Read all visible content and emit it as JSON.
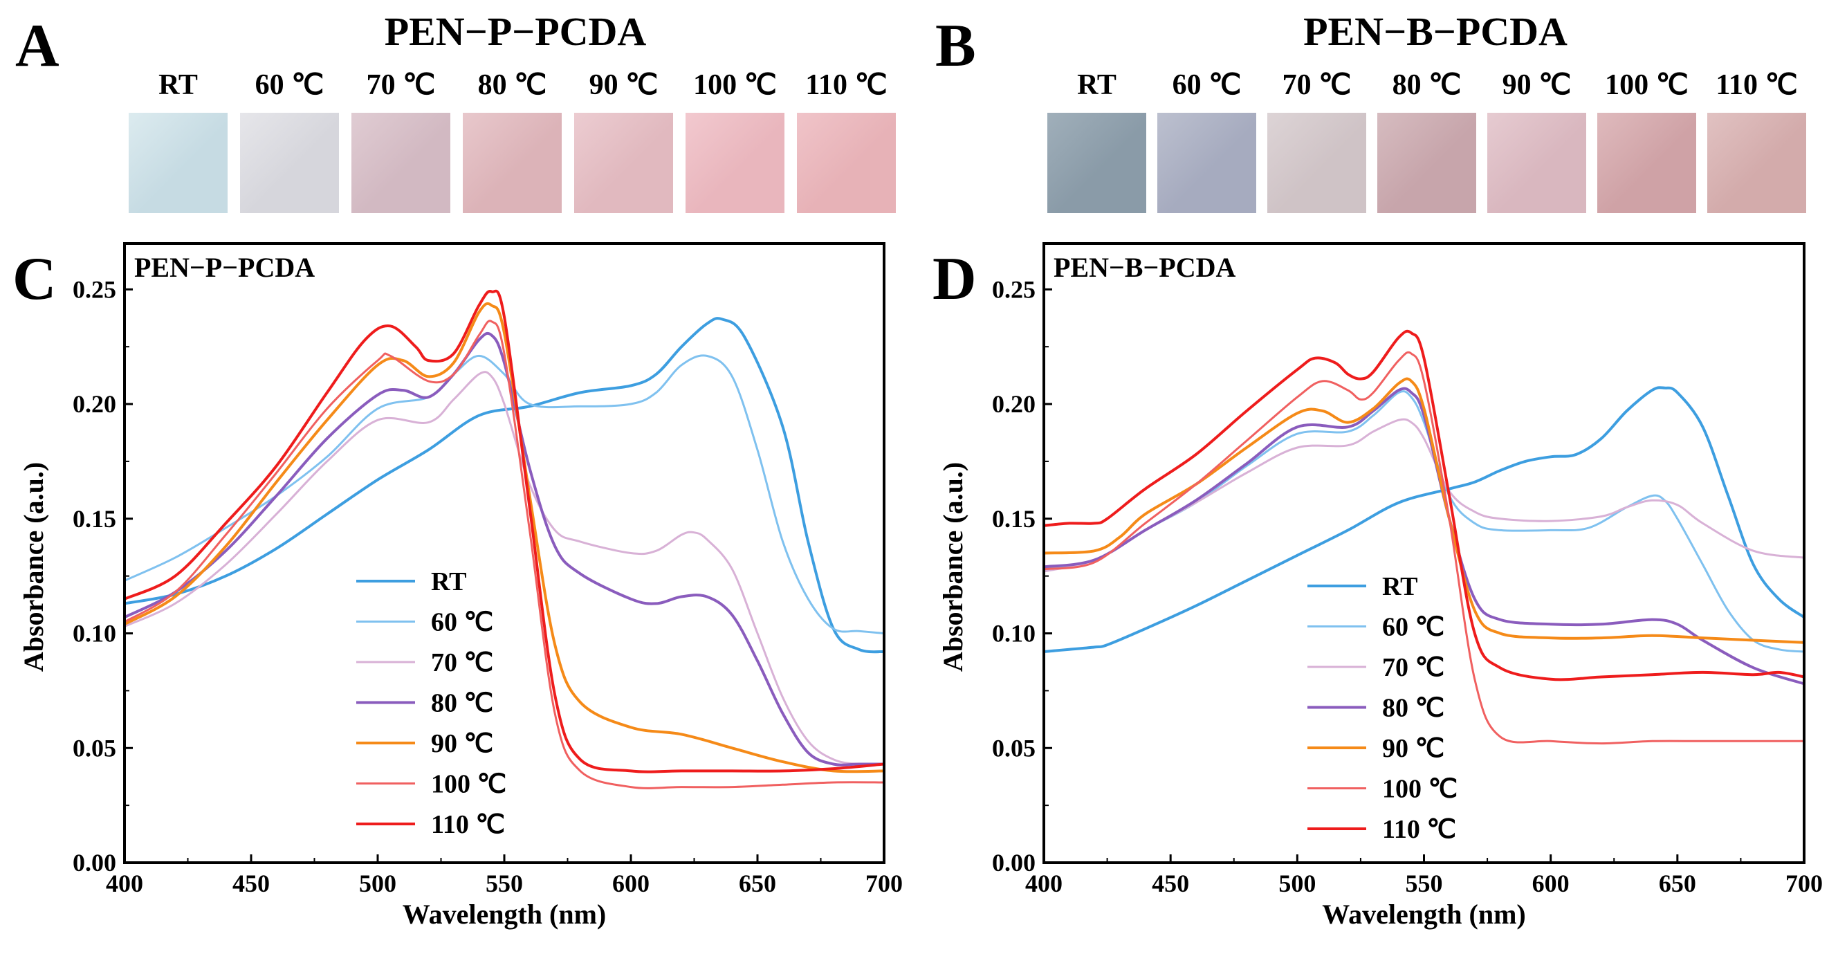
{
  "panels": {
    "A": {
      "letter": "A",
      "title": "PEN−P−PCDA"
    },
    "B": {
      "letter": "B",
      "title": "PEN−B−PCDA"
    },
    "C": {
      "letter": "C"
    },
    "D": {
      "letter": "D"
    }
  },
  "swatches": {
    "labels": [
      "RT",
      "60 ℃",
      "70 ℃",
      "80 ℃",
      "90 ℃",
      "100 ℃",
      "110 ℃"
    ],
    "P": [
      {
        "color": "#c6dbe3",
        "edge": "#dcebef"
      },
      {
        "color": "#d6d6dc",
        "edge": "#e6e6ea"
      },
      {
        "color": "#d2b9c2",
        "edge": "#e0ccd3"
      },
      {
        "color": "#dcb3b8",
        "edge": "#e8c8cc"
      },
      {
        "color": "#e1b9bf",
        "edge": "#ecccd1"
      },
      {
        "color": "#e9b6bd",
        "edge": "#f2c9cf"
      },
      {
        "color": "#e7b2b7",
        "edge": "#f0c4c9"
      }
    ],
    "B": [
      {
        "color": "#8a9ba8",
        "edge": "#a0afba"
      },
      {
        "color": "#a6abbf",
        "edge": "#bcc0cf"
      },
      {
        "color": "#cfc3c6",
        "edge": "#ddd4d6"
      },
      {
        "color": "#c7a5ab",
        "edge": "#d6bcc0"
      },
      {
        "color": "#d9b7bf",
        "edge": "#e6cbd1"
      },
      {
        "color": "#cfa2a6",
        "edge": "#dfbabd"
      },
      {
        "color": "#d3abab",
        "edge": "#e1c2c2"
      }
    ]
  },
  "chart_data": [
    {
      "panel": "C",
      "type": "line",
      "title": "PEN−P−PCDA",
      "xlabel": "Wavelength (nm)",
      "ylabel": "Absorbance (a.u.)",
      "xlim": [
        400,
        700
      ],
      "ylim": [
        0,
        0.27
      ],
      "xticks": [
        "400",
        "450",
        "500",
        "550",
        "600",
        "650",
        "700"
      ],
      "yticks": [
        "0.00",
        "0.05",
        "0.10",
        "0.15",
        "0.20",
        "0.25"
      ],
      "legend_position": "lower-left",
      "series": [
        {
          "name": "RT",
          "color": "#3d9ee0",
          "width": 4,
          "x": [
            400,
            420,
            440,
            460,
            480,
            500,
            520,
            540,
            560,
            580,
            600,
            610,
            620,
            630,
            636,
            645,
            660,
            670,
            680,
            690,
            700
          ],
          "y": [
            0.113,
            0.117,
            0.125,
            0.137,
            0.152,
            0.167,
            0.18,
            0.195,
            0.199,
            0.205,
            0.208,
            0.213,
            0.225,
            0.235,
            0.237,
            0.229,
            0.19,
            0.14,
            0.102,
            0.093,
            0.092
          ]
        },
        {
          "name": "60 ℃",
          "color": "#7fc1ef",
          "width": 3,
          "x": [
            400,
            420,
            440,
            460,
            480,
            500,
            520,
            530,
            540,
            550,
            560,
            580,
            600,
            610,
            620,
            630,
            640,
            650,
            660,
            670,
            680,
            690,
            700
          ],
          "y": [
            0.123,
            0.133,
            0.146,
            0.16,
            0.177,
            0.198,
            0.203,
            0.213,
            0.221,
            0.213,
            0.2,
            0.199,
            0.2,
            0.205,
            0.217,
            0.221,
            0.212,
            0.18,
            0.14,
            0.115,
            0.102,
            0.101,
            0.1
          ]
        },
        {
          "name": "70 ℃",
          "color": "#d8b1d6",
          "width": 3,
          "x": [
            400,
            420,
            440,
            460,
            480,
            500,
            520,
            530,
            540,
            545,
            550,
            560,
            570,
            580,
            600,
            610,
            620,
            625,
            630,
            640,
            650,
            660,
            670,
            680,
            690,
            700
          ],
          "y": [
            0.103,
            0.113,
            0.13,
            0.152,
            0.175,
            0.193,
            0.192,
            0.202,
            0.213,
            0.212,
            0.2,
            0.165,
            0.145,
            0.14,
            0.135,
            0.136,
            0.143,
            0.144,
            0.141,
            0.128,
            0.1,
            0.072,
            0.053,
            0.045,
            0.043,
            0.043
          ]
        },
        {
          "name": "80 ℃",
          "color": "#8a5cbd",
          "width": 4,
          "x": [
            400,
            420,
            440,
            460,
            480,
            500,
            510,
            520,
            530,
            540,
            545,
            550,
            560,
            570,
            580,
            600,
            610,
            620,
            630,
            640,
            650,
            660,
            670,
            680,
            690,
            700
          ],
          "y": [
            0.107,
            0.118,
            0.136,
            0.16,
            0.185,
            0.204,
            0.206,
            0.203,
            0.213,
            0.228,
            0.23,
            0.218,
            0.172,
            0.138,
            0.126,
            0.115,
            0.113,
            0.116,
            0.116,
            0.108,
            0.088,
            0.065,
            0.048,
            0.043,
            0.043,
            0.043
          ]
        },
        {
          "name": "90 ℃",
          "color": "#f58a18",
          "width": 4,
          "x": [
            400,
            420,
            440,
            460,
            480,
            500,
            510,
            520,
            530,
            540,
            545,
            550,
            560,
            570,
            580,
            600,
            620,
            640,
            660,
            680,
            700
          ],
          "y": [
            0.104,
            0.116,
            0.138,
            0.166,
            0.193,
            0.217,
            0.219,
            0.212,
            0.218,
            0.24,
            0.243,
            0.231,
            0.16,
            0.095,
            0.07,
            0.059,
            0.056,
            0.05,
            0.044,
            0.04,
            0.04
          ]
        },
        {
          "name": "100 ℃",
          "color": "#f06060",
          "width": 3,
          "x": [
            400,
            420,
            440,
            460,
            480,
            500,
            505,
            520,
            530,
            540,
            545,
            550,
            560,
            570,
            580,
            600,
            620,
            640,
            660,
            680,
            700
          ],
          "y": [
            0.105,
            0.118,
            0.143,
            0.17,
            0.198,
            0.219,
            0.221,
            0.21,
            0.213,
            0.23,
            0.236,
            0.222,
            0.145,
            0.065,
            0.04,
            0.033,
            0.033,
            0.033,
            0.034,
            0.035,
            0.035
          ]
        },
        {
          "name": "110 ℃",
          "color": "#ee1c1c",
          "width": 4,
          "x": [
            400,
            420,
            440,
            460,
            480,
            495,
            505,
            515,
            520,
            530,
            540,
            545,
            550,
            560,
            570,
            580,
            600,
            620,
            640,
            660,
            680,
            700
          ],
          "y": [
            0.115,
            0.125,
            0.148,
            0.173,
            0.205,
            0.228,
            0.234,
            0.225,
            0.219,
            0.222,
            0.243,
            0.249,
            0.238,
            0.155,
            0.073,
            0.045,
            0.04,
            0.04,
            0.04,
            0.04,
            0.041,
            0.043
          ]
        }
      ]
    },
    {
      "panel": "D",
      "type": "line",
      "title": "PEN−B−PCDA",
      "xlabel": "Wavelength (nm)",
      "ylabel": "Absorbance (a.u.)",
      "xlim": [
        400,
        700
      ],
      "ylim": [
        0,
        0.27
      ],
      "xticks": [
        "400",
        "450",
        "500",
        "550",
        "600",
        "650",
        "700"
      ],
      "yticks": [
        "0.00",
        "0.05",
        "0.10",
        "0.15",
        "0.20",
        "0.25"
      ],
      "legend_position": "lower-center",
      "series": [
        {
          "name": "RT",
          "color": "#3d9ee0",
          "width": 4,
          "x": [
            400,
            410,
            420,
            425,
            440,
            460,
            480,
            500,
            520,
            540,
            560,
            570,
            580,
            590,
            600,
            610,
            620,
            630,
            640,
            645,
            650,
            660,
            670,
            680,
            690,
            700
          ],
          "y": [
            0.092,
            0.093,
            0.094,
            0.095,
            0.102,
            0.112,
            0.123,
            0.134,
            0.145,
            0.157,
            0.163,
            0.166,
            0.171,
            0.175,
            0.177,
            0.178,
            0.185,
            0.197,
            0.206,
            0.207,
            0.205,
            0.19,
            0.16,
            0.13,
            0.115,
            0.107
          ]
        },
        {
          "name": "60 ℃",
          "color": "#7fc1ef",
          "width": 3,
          "x": [
            400,
            420,
            440,
            460,
            480,
            500,
            520,
            530,
            540,
            545,
            550,
            560,
            570,
            580,
            600,
            615,
            630,
            640,
            645,
            650,
            660,
            670,
            680,
            690,
            700
          ],
          "y": [
            0.128,
            0.132,
            0.145,
            0.157,
            0.173,
            0.187,
            0.188,
            0.195,
            0.205,
            0.203,
            0.192,
            0.16,
            0.148,
            0.145,
            0.145,
            0.146,
            0.155,
            0.16,
            0.158,
            0.15,
            0.13,
            0.11,
            0.097,
            0.093,
            0.092
          ]
        },
        {
          "name": "70 ℃",
          "color": "#d8b1d6",
          "width": 3,
          "x": [
            400,
            420,
            440,
            460,
            480,
            500,
            520,
            530,
            540,
            545,
            550,
            560,
            570,
            580,
            600,
            620,
            630,
            640,
            650,
            660,
            680,
            700
          ],
          "y": [
            0.127,
            0.132,
            0.145,
            0.157,
            0.17,
            0.181,
            0.182,
            0.188,
            0.193,
            0.192,
            0.185,
            0.162,
            0.153,
            0.15,
            0.149,
            0.151,
            0.155,
            0.158,
            0.156,
            0.148,
            0.136,
            0.133
          ]
        },
        {
          "name": "80 ℃",
          "color": "#8a5cbd",
          "width": 4,
          "x": [
            400,
            420,
            440,
            460,
            480,
            500,
            520,
            530,
            540,
            545,
            550,
            560,
            570,
            580,
            600,
            620,
            640,
            650,
            660,
            680,
            700
          ],
          "y": [
            0.129,
            0.132,
            0.145,
            0.158,
            0.174,
            0.19,
            0.19,
            0.197,
            0.206,
            0.205,
            0.195,
            0.15,
            0.115,
            0.106,
            0.104,
            0.104,
            0.106,
            0.104,
            0.097,
            0.085,
            0.078
          ]
        },
        {
          "name": "90 ℃",
          "color": "#f58a18",
          "width": 4,
          "x": [
            400,
            420,
            430,
            440,
            460,
            480,
            500,
            510,
            520,
            530,
            540,
            545,
            550,
            560,
            570,
            580,
            600,
            620,
            640,
            660,
            680,
            700
          ],
          "y": [
            0.135,
            0.136,
            0.142,
            0.152,
            0.165,
            0.181,
            0.196,
            0.197,
            0.192,
            0.198,
            0.209,
            0.21,
            0.198,
            0.15,
            0.11,
            0.1,
            0.098,
            0.098,
            0.099,
            0.098,
            0.097,
            0.096
          ]
        },
        {
          "name": "100 ℃",
          "color": "#f06060",
          "width": 3,
          "x": [
            400,
            420,
            440,
            460,
            480,
            500,
            510,
            520,
            525,
            530,
            540,
            545,
            550,
            560,
            570,
            580,
            600,
            620,
            640,
            660,
            680,
            700
          ],
          "y": [
            0.128,
            0.131,
            0.148,
            0.165,
            0.184,
            0.203,
            0.21,
            0.206,
            0.202,
            0.205,
            0.219,
            0.222,
            0.21,
            0.15,
            0.08,
            0.055,
            0.053,
            0.052,
            0.053,
            0.053,
            0.053,
            0.053
          ]
        },
        {
          "name": "110 ℃",
          "color": "#ee1c1c",
          "width": 4,
          "x": [
            400,
            410,
            420,
            425,
            440,
            460,
            480,
            500,
            507,
            515,
            520,
            525,
            530,
            540,
            545,
            550,
            560,
            570,
            580,
            600,
            620,
            640,
            660,
            680,
            690,
            700
          ],
          "y": [
            0.147,
            0.148,
            0.148,
            0.15,
            0.163,
            0.178,
            0.197,
            0.215,
            0.22,
            0.218,
            0.213,
            0.211,
            0.214,
            0.229,
            0.231,
            0.22,
            0.16,
            0.1,
            0.085,
            0.08,
            0.081,
            0.082,
            0.083,
            0.082,
            0.083,
            0.081
          ]
        }
      ]
    }
  ]
}
